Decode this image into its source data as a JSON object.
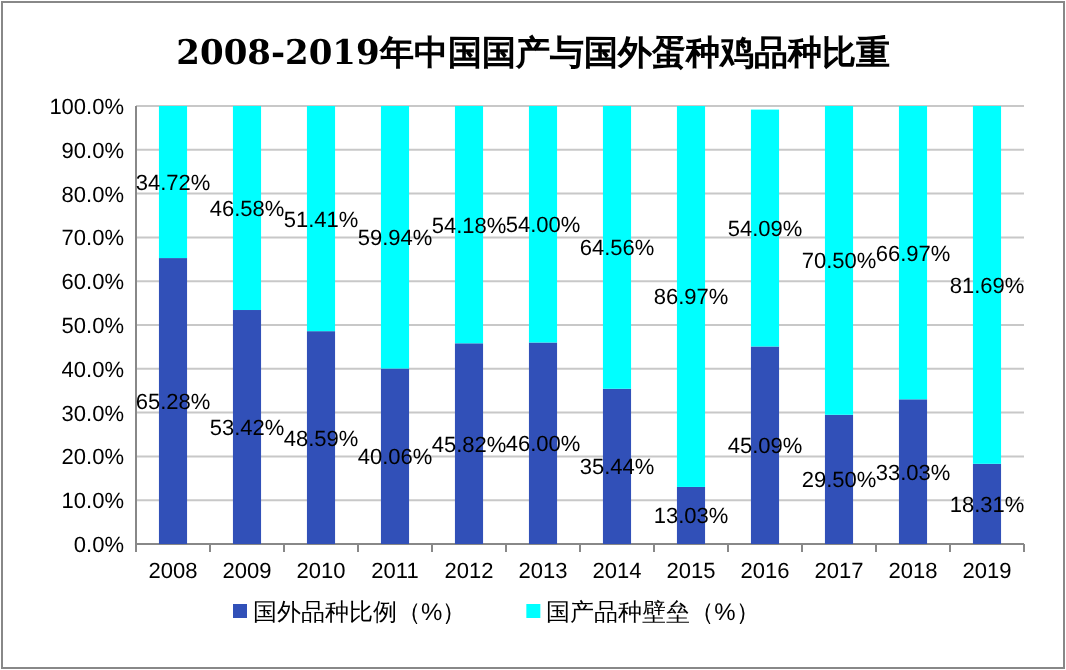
{
  "chart_data": {
    "type": "bar",
    "stacked": true,
    "title": "2008-2019年中国国产与国外蛋种鸡品种比重",
    "categories": [
      "2008",
      "2009",
      "2010",
      "2011",
      "2012",
      "2013",
      "2014",
      "2015",
      "2016",
      "2017",
      "2018",
      "2019"
    ],
    "series": [
      {
        "name": "国外品种比例（%）",
        "color": "#3150b8",
        "values": [
          65.28,
          53.42,
          48.59,
          40.06,
          45.82,
          46.0,
          35.44,
          13.03,
          45.09,
          29.5,
          33.03,
          18.31
        ],
        "value_labels": [
          "65.28%",
          "53.42%",
          "48.59%",
          "40.06%",
          "45.82%",
          "46.00%",
          "35.44%",
          "13.03%",
          "45.09%",
          "29.50%",
          "33.03%",
          "18.31%"
        ]
      },
      {
        "name": "国产品种壁垒（%）",
        "color": "#00ffff",
        "values": [
          34.72,
          46.58,
          51.41,
          59.94,
          54.18,
          54.0,
          64.56,
          86.97,
          54.09,
          70.5,
          66.97,
          81.69
        ],
        "value_labels": [
          "34.72%",
          "46.58%",
          "51.41%",
          "59.94%",
          "54.18%",
          "54.00%",
          "64.56%",
          "86.97%",
          "54.09%",
          "70.50%",
          "66.97%",
          "81.69%"
        ]
      }
    ],
    "ylim": [
      0,
      100
    ],
    "yticks": [
      {
        "value": 0,
        "label": "0.0%"
      },
      {
        "value": 10,
        "label": "10.0%"
      },
      {
        "value": 20,
        "label": "20.0%"
      },
      {
        "value": 30,
        "label": "30.0%"
      },
      {
        "value": 40,
        "label": "40.0%"
      },
      {
        "value": 50,
        "label": "50.0%"
      },
      {
        "value": 60,
        "label": "60.0%"
      },
      {
        "value": 70,
        "label": "70.0%"
      },
      {
        "value": 80,
        "label": "80.0%"
      },
      {
        "value": 90,
        "label": "90.0%"
      },
      {
        "value": 100,
        "label": "100.0%"
      }
    ],
    "grid": "y",
    "legend": "bottom"
  }
}
